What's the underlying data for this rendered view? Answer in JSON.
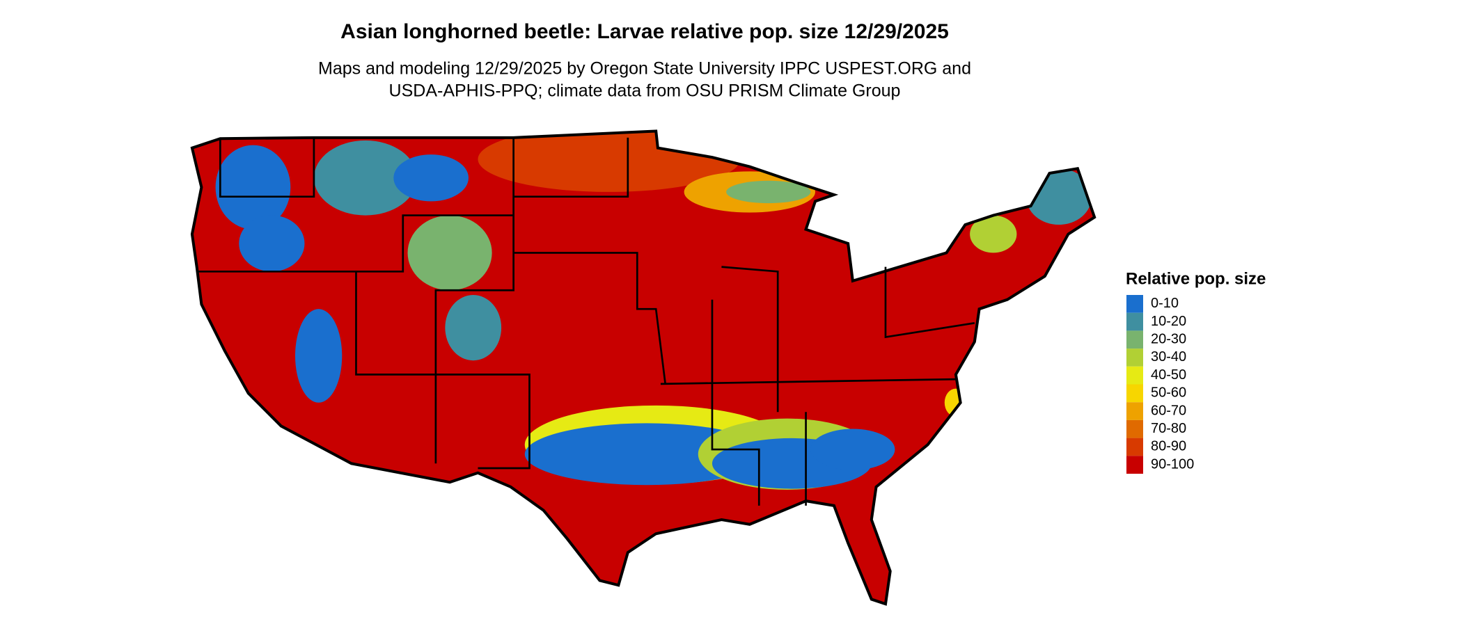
{
  "title": "Asian longhorned beetle: Larvae relative pop. size 12/29/2025",
  "subtitle": [
    "Maps and modeling 12/29/2025 by Oregon State University IPPC USPEST.ORG and",
    "USDA-APHIS-PPQ; climate data from OSU PRISM Climate Group"
  ],
  "legend": {
    "title": "Relative pop. size",
    "items": [
      {
        "label": "0-10",
        "color": "#1a6fce"
      },
      {
        "label": "10-20",
        "color": "#3f8fa0"
      },
      {
        "label": "20-30",
        "color": "#79b36e"
      },
      {
        "label": "30-40",
        "color": "#b1d034"
      },
      {
        "label": "40-50",
        "color": "#e6ea14"
      },
      {
        "label": "50-60",
        "color": "#f7d600"
      },
      {
        "label": "60-70",
        "color": "#eea200"
      },
      {
        "label": "70-80",
        "color": "#e06a00"
      },
      {
        "label": "80-90",
        "color": "#d83a00"
      },
      {
        "label": "90-100",
        "color": "#c80000"
      }
    ]
  }
}
